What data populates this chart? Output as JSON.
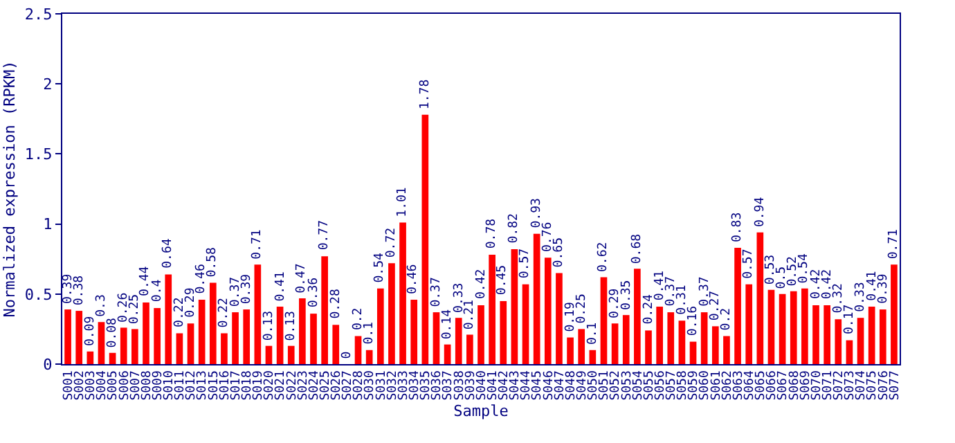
{
  "chart_data": {
    "type": "bar",
    "xlabel": "Sample",
    "ylabel": "Normalized expression (RPKM)",
    "categories": [
      "S001",
      "S002",
      "S003",
      "S004",
      "S005",
      "S006",
      "S007",
      "S008",
      "S009",
      "S010",
      "S011",
      "S012",
      "S013",
      "S015",
      "S016",
      "S017",
      "S018",
      "S019",
      "S020",
      "S021",
      "S022",
      "S023",
      "S024",
      "S025",
      "S026",
      "S027",
      "S028",
      "S030",
      "S031",
      "S032",
      "S033",
      "S034",
      "S035",
      "S036",
      "S037",
      "S038",
      "S039",
      "S040",
      "S041",
      "S042",
      "S043",
      "S044",
      "S045",
      "S046",
      "S047",
      "S048",
      "S049",
      "S050",
      "S051",
      "S052",
      "S053",
      "S054",
      "S055",
      "S056",
      "S057",
      "S058",
      "S059",
      "S060",
      "S061",
      "S062",
      "S063",
      "S064",
      "S065",
      "S066",
      "S067",
      "S068",
      "S069",
      "S070",
      "S071",
      "S072",
      "S073",
      "S074",
      "S075",
      "S076",
      "S077"
    ],
    "values": [
      0.39,
      0.38,
      0.09,
      0.3,
      0.08,
      0.26,
      0.25,
      0.44,
      0.4,
      0.64,
      0.22,
      0.29,
      0.46,
      0.58,
      0.22,
      0.37,
      0.39,
      0.71,
      0.13,
      0.41,
      0.13,
      0.47,
      0.36,
      0.77,
      0.28,
      0,
      0.2,
      0.1,
      0.54,
      0.72,
      1.01,
      0.46,
      1.78,
      0.37,
      0.14,
      0.33,
      0.21,
      0.42,
      0.78,
      0.45,
      0.82,
      0.57,
      0.93,
      0.76,
      0.65,
      0.19,
      0.25,
      0.1,
      0.62,
      0.29,
      0.35,
      0.68,
      0.24,
      0.41,
      0.37,
      0.31,
      0.16,
      0.37,
      0.27,
      0.2,
      0.83,
      0.57,
      0.94,
      0.53,
      0.5,
      0.52,
      0.54,
      0.42,
      0.42,
      0.32,
      0.17,
      0.33,
      0.41,
      0.39,
      0.71
    ],
    "color": "#ff0000",
    "data_labels": true,
    "ylim": [
      0,
      2.5
    ],
    "yticks": [
      0,
      0.5,
      1,
      1.5,
      2,
      2.5
    ],
    "grid": false,
    "legend": false
  }
}
